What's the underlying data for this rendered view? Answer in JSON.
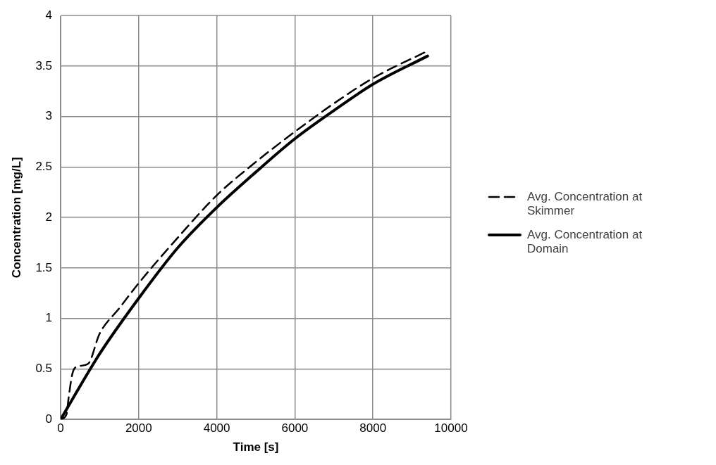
{
  "chart_data": {
    "type": "line",
    "xlabel": "Time [s]",
    "ylabel": "Concentration [mg/L]",
    "xlim": [
      0,
      10000
    ],
    "xticks": [
      0,
      2000,
      4000,
      6000,
      8000,
      10000
    ],
    "ylim": [
      0,
      4
    ],
    "yticks": [
      0,
      0.5,
      1,
      1.5,
      2,
      2.5,
      3,
      3.5,
      4
    ],
    "grid": true,
    "legend": "right",
    "marker": "none",
    "series": [
      {
        "name": "Avg. Concentration at Skimmer",
        "color": "#000000",
        "line_style": "dashed",
        "x": [
          0,
          150,
          200,
          300,
          400,
          700,
          1000,
          1500,
          2000,
          3000,
          4000,
          5000,
          6000,
          7000,
          8000,
          9400
        ],
        "values": [
          0,
          0.05,
          0.2,
          0.45,
          0.52,
          0.55,
          0.85,
          1.1,
          1.35,
          1.8,
          2.22,
          2.55,
          2.85,
          3.13,
          3.38,
          3.65
        ]
      },
      {
        "name": "Avg. Concentration at Domain",
        "color": "#000000",
        "line_style": "solid",
        "x": [
          0,
          1000,
          2000,
          3000,
          4000,
          5000,
          6000,
          7000,
          8000,
          9400
        ],
        "values": [
          0,
          0.65,
          1.2,
          1.7,
          2.1,
          2.45,
          2.78,
          3.06,
          3.32,
          3.6
        ]
      }
    ]
  }
}
